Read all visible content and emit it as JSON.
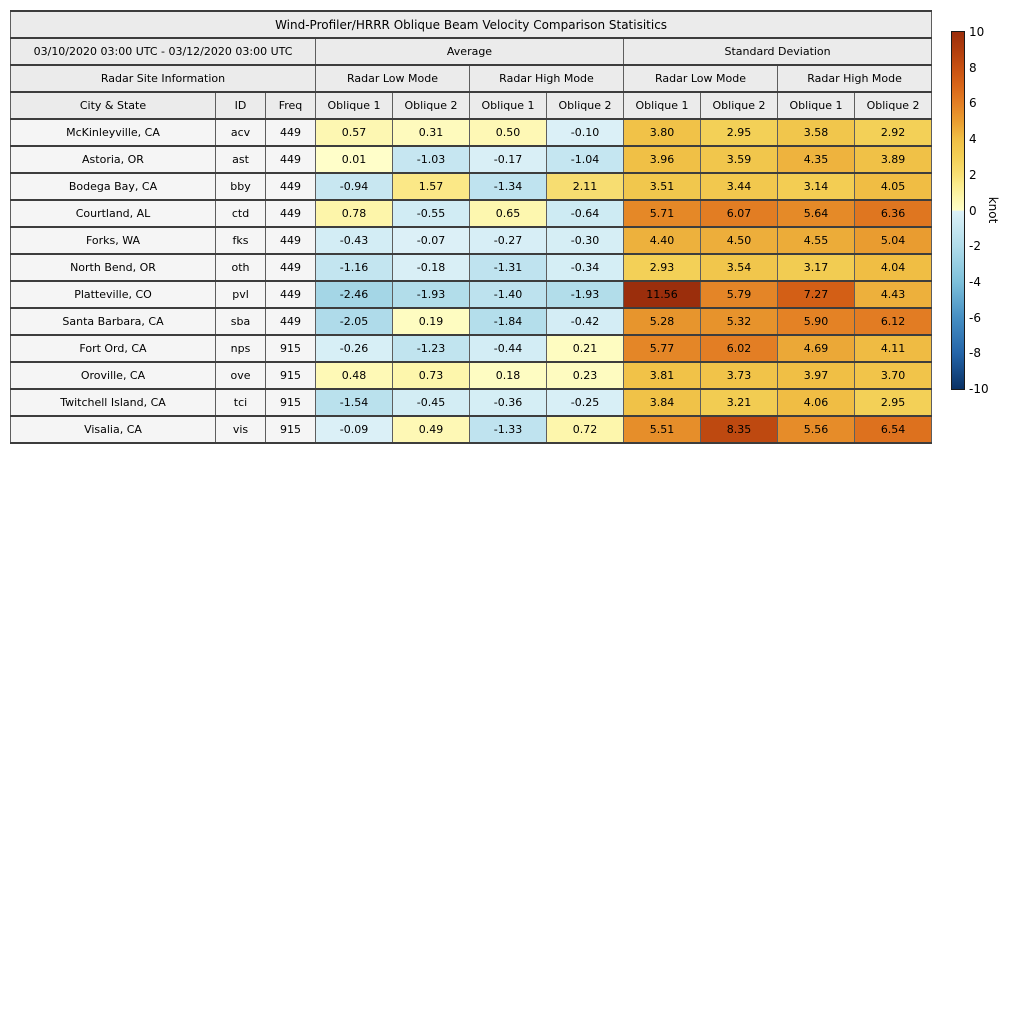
{
  "header": {
    "title": "Wind-Profiler/HRRR Oblique Beam Velocity Comparison Statisitics",
    "date_range": "03/10/2020 03:00 UTC - 03/12/2020 03:00 UTC",
    "site_info_label": "Radar Site Information"
  },
  "chart_data": {
    "type": "heatmap",
    "title": "Wind-Profiler/HRRR Oblique Beam Velocity Comparison Statisitics",
    "date_range": "03/10/2020 03:00 UTC - 03/12/2020 03:00 UTC",
    "groups": [
      "Average",
      "Standard Deviation"
    ],
    "modes": [
      "Radar Low Mode",
      "Radar High Mode"
    ],
    "value_columns": [
      "Oblique 1",
      "Oblique 2"
    ],
    "site_columns": [
      "City & State",
      "ID",
      "Freq"
    ],
    "rows": [
      {
        "city": "McKinleyville, CA",
        "id": "acv",
        "freq": 449,
        "values": [
          0.57,
          0.31,
          0.5,
          -0.1,
          3.8,
          2.95,
          3.58,
          2.92
        ]
      },
      {
        "city": "Astoria, OR",
        "id": "ast",
        "freq": 449,
        "values": [
          0.01,
          -1.03,
          -0.17,
          -1.04,
          3.96,
          3.59,
          4.35,
          3.89
        ]
      },
      {
        "city": "Bodega Bay, CA",
        "id": "bby",
        "freq": 449,
        "values": [
          -0.94,
          1.57,
          -1.34,
          2.11,
          3.51,
          3.44,
          3.14,
          4.05
        ]
      },
      {
        "city": "Courtland, AL",
        "id": "ctd",
        "freq": 449,
        "values": [
          0.78,
          -0.55,
          0.65,
          -0.64,
          5.71,
          6.07,
          5.64,
          6.36
        ]
      },
      {
        "city": "Forks, WA",
        "id": "fks",
        "freq": 449,
        "values": [
          -0.43,
          -0.07,
          -0.27,
          -0.3,
          4.4,
          4.5,
          4.55,
          5.04
        ]
      },
      {
        "city": "North Bend, OR",
        "id": "oth",
        "freq": 449,
        "values": [
          -1.16,
          -0.18,
          -1.31,
          -0.34,
          2.93,
          3.54,
          3.17,
          4.04
        ]
      },
      {
        "city": "Platteville, CO",
        "id": "pvl",
        "freq": 449,
        "values": [
          -2.46,
          -1.93,
          -1.4,
          -1.93,
          11.56,
          5.79,
          7.27,
          4.43
        ]
      },
      {
        "city": "Santa Barbara, CA",
        "id": "sba",
        "freq": 449,
        "values": [
          -2.05,
          0.19,
          -1.84,
          -0.42,
          5.28,
          5.32,
          5.9,
          6.12
        ]
      },
      {
        "city": "Fort Ord, CA",
        "id": "nps",
        "freq": 915,
        "values": [
          -0.26,
          -1.23,
          -0.44,
          0.21,
          5.77,
          6.02,
          4.69,
          4.11
        ]
      },
      {
        "city": "Oroville, CA",
        "id": "ove",
        "freq": 915,
        "values": [
          0.48,
          0.73,
          0.18,
          0.23,
          3.81,
          3.73,
          3.97,
          3.7
        ]
      },
      {
        "city": "Twitchell Island, CA",
        "id": "tci",
        "freq": 915,
        "values": [
          -1.54,
          -0.45,
          -0.36,
          -0.25,
          3.84,
          3.21,
          4.06,
          2.95
        ]
      },
      {
        "city": "Visalia, CA",
        "id": "vis",
        "freq": 915,
        "values": [
          -0.09,
          0.49,
          -1.33,
          0.72,
          5.51,
          8.35,
          5.56,
          6.54
        ]
      }
    ],
    "colorbar": {
      "label": "knot",
      "vmin": -10,
      "vmax": 10,
      "ticks": [
        10,
        8,
        6,
        4,
        2,
        0,
        -2,
        -4,
        -6,
        -8,
        -10
      ],
      "stops": [
        [
          -10,
          "#0a3164"
        ],
        [
          -8,
          "#2465a9"
        ],
        [
          -6,
          "#468fc3"
        ],
        [
          -4,
          "#7dc0da"
        ],
        [
          -2,
          "#b0dcea"
        ],
        [
          -0.7,
          "#cdeaf3"
        ],
        [
          -0.02,
          "#ddf1f7"
        ],
        [
          0,
          "#fffec9"
        ],
        [
          0.7,
          "#fdf6ad"
        ],
        [
          1.5,
          "#fbea8a"
        ],
        [
          2,
          "#f8df74"
        ],
        [
          3,
          "#f3cf55"
        ],
        [
          4,
          "#f0bf45"
        ],
        [
          5,
          "#e99d30"
        ],
        [
          6,
          "#e37f24"
        ],
        [
          7,
          "#d86518"
        ],
        [
          8,
          "#c65012"
        ],
        [
          9,
          "#b03d0d"
        ],
        [
          10,
          "#9b2e0c"
        ]
      ]
    }
  }
}
